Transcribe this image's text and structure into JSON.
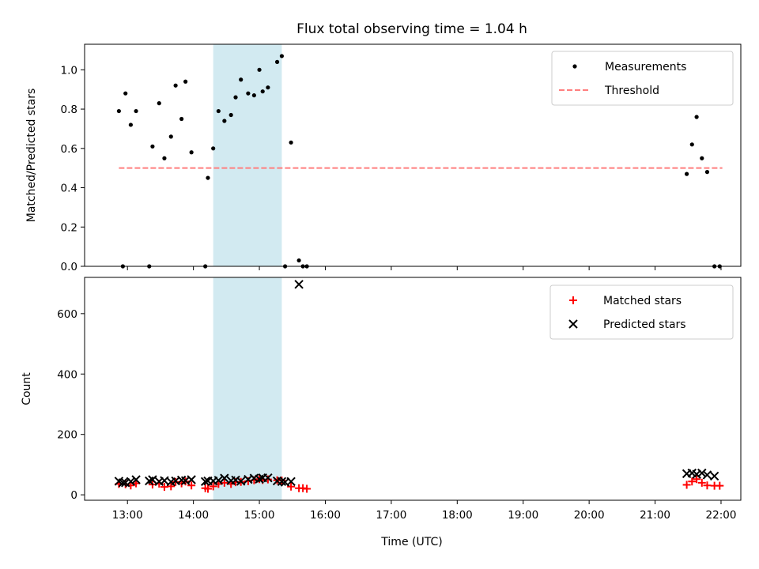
{
  "chart_data": {
    "title": "Flux total observing time = 1.04 h",
    "xlabel": "Time (UTC)",
    "x_ticks": [
      "13:00",
      "14:00",
      "15:00",
      "16:00",
      "17:00",
      "18:00",
      "19:00",
      "20:00",
      "21:00",
      "22:00"
    ],
    "x_range_hours": [
      12.35,
      22.3
    ],
    "highlight_span_hours": [
      14.3,
      15.34
    ],
    "panels": [
      {
        "type": "scatter",
        "ylabel": "Matched/Predicted stars",
        "ylim": [
          0,
          1.13
        ],
        "y_ticks": [
          "0.0",
          "0.2",
          "0.4",
          "0.6",
          "0.8",
          "1.0"
        ],
        "y_tick_values": [
          0,
          0.2,
          0.4,
          0.6,
          0.8,
          1.0
        ],
        "legend_position": "top-right",
        "series": [
          {
            "name": "Measurements",
            "marker": "dot",
            "color": "#000000",
            "points": [
              [
                12.87,
                0.79
              ],
              [
                12.93,
                0.0
              ],
              [
                12.97,
                0.88
              ],
              [
                13.05,
                0.72
              ],
              [
                13.13,
                0.79
              ],
              [
                13.33,
                0.0
              ],
              [
                13.38,
                0.61
              ],
              [
                13.48,
                0.83
              ],
              [
                13.56,
                0.55
              ],
              [
                13.66,
                0.66
              ],
              [
                13.73,
                0.92
              ],
              [
                13.82,
                0.75
              ],
              [
                13.88,
                0.94
              ],
              [
                13.97,
                0.58
              ],
              [
                14.18,
                0.0
              ],
              [
                14.22,
                0.45
              ],
              [
                14.3,
                0.6
              ],
              [
                14.38,
                0.79
              ],
              [
                14.47,
                0.74
              ],
              [
                14.57,
                0.77
              ],
              [
                14.64,
                0.86
              ],
              [
                14.72,
                0.95
              ],
              [
                14.83,
                0.88
              ],
              [
                14.92,
                0.87
              ],
              [
                15.0,
                1.0
              ],
              [
                15.05,
                0.89
              ],
              [
                15.13,
                0.91
              ],
              [
                15.27,
                1.04
              ],
              [
                15.34,
                1.07
              ],
              [
                15.39,
                0.0
              ],
              [
                15.48,
                0.63
              ],
              [
                15.6,
                0.03
              ],
              [
                15.66,
                0.0
              ],
              [
                15.72,
                0.0
              ],
              [
                21.48,
                0.47
              ],
              [
                21.56,
                0.62
              ],
              [
                21.63,
                0.76
              ],
              [
                21.71,
                0.55
              ],
              [
                21.79,
                0.48
              ],
              [
                21.9,
                0.0
              ],
              [
                21.98,
                0.0
              ]
            ]
          },
          {
            "name": "Threshold",
            "marker": "dashed-line",
            "color": "#ff7f7f",
            "points": [
              [
                12.87,
                0.5
              ],
              [
                22.02,
                0.5
              ]
            ]
          }
        ]
      },
      {
        "type": "scatter",
        "ylabel": "Count",
        "ylim": [
          -18,
          720
        ],
        "y_ticks": [
          "0",
          "200",
          "400",
          "600"
        ],
        "y_tick_values": [
          0,
          200,
          400,
          600
        ],
        "legend_position": "top-right",
        "series": [
          {
            "name": "Matched stars",
            "marker": "plus",
            "color": "#ff0000",
            "points": [
              [
                12.87,
                36
              ],
              [
                12.97,
                35
              ],
              [
                13.05,
                31
              ],
              [
                13.13,
                38
              ],
              [
                13.38,
                34
              ],
              [
                13.48,
                37
              ],
              [
                13.56,
                26
              ],
              [
                13.66,
                28
              ],
              [
                13.73,
                43
              ],
              [
                13.82,
                38
              ],
              [
                13.88,
                44
              ],
              [
                13.97,
                31
              ],
              [
                14.18,
                22
              ],
              [
                14.22,
                20
              ],
              [
                14.3,
                28
              ],
              [
                14.38,
                36
              ],
              [
                14.47,
                40
              ],
              [
                14.57,
                36
              ],
              [
                14.64,
                42
              ],
              [
                14.72,
                43
              ],
              [
                14.83,
                45
              ],
              [
                14.92,
                48
              ],
              [
                15.0,
                52
              ],
              [
                15.05,
                49
              ],
              [
                15.13,
                51
              ],
              [
                15.27,
                48
              ],
              [
                15.34,
                47
              ],
              [
                15.48,
                27
              ],
              [
                15.6,
                22
              ],
              [
                15.66,
                22
              ],
              [
                15.72,
                20
              ],
              [
                21.48,
                33
              ],
              [
                21.56,
                44
              ],
              [
                21.63,
                52
              ],
              [
                21.71,
                40
              ],
              [
                21.79,
                31
              ],
              [
                21.9,
                30
              ],
              [
                21.98,
                30
              ]
            ]
          },
          {
            "name": "Predicted stars",
            "marker": "x",
            "color": "#000000",
            "points": [
              [
                12.87,
                45
              ],
              [
                12.93,
                40
              ],
              [
                12.97,
                40
              ],
              [
                13.05,
                44
              ],
              [
                13.13,
                50
              ],
              [
                13.33,
                46
              ],
              [
                13.38,
                50
              ],
              [
                13.48,
                44
              ],
              [
                13.56,
                47
              ],
              [
                13.66,
                43
              ],
              [
                13.73,
                46
              ],
              [
                13.82,
                49
              ],
              [
                13.88,
                47
              ],
              [
                13.97,
                50
              ],
              [
                14.18,
                44
              ],
              [
                14.22,
                46
              ],
              [
                14.3,
                46
              ],
              [
                14.38,
                48
              ],
              [
                14.47,
                55
              ],
              [
                14.57,
                47
              ],
              [
                14.64,
                49
              ],
              [
                14.72,
                45
              ],
              [
                14.83,
                51
              ],
              [
                14.92,
                55
              ],
              [
                15.0,
                52
              ],
              [
                15.05,
                56
              ],
              [
                15.13,
                56
              ],
              [
                15.27,
                46
              ],
              [
                15.34,
                44
              ],
              [
                15.39,
                42
              ],
              [
                15.48,
                44
              ],
              [
                15.6,
                697
              ],
              [
                21.48,
                70
              ],
              [
                21.56,
                72
              ],
              [
                21.63,
                68
              ],
              [
                21.71,
                72
              ],
              [
                21.79,
                66
              ],
              [
                21.9,
                62
              ]
            ]
          }
        ]
      }
    ]
  }
}
